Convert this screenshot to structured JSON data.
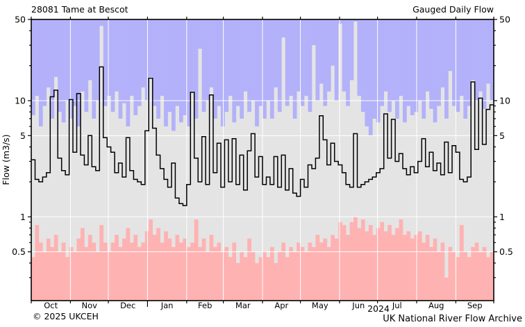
{
  "header": {
    "title": "28081 Tame at Bescot",
    "series_label": "Gauged Daily Flow"
  },
  "footer": {
    "copyright": "© 2025 UKCEH",
    "source": "UK National River Flow Archive"
  },
  "axes": {
    "y_label": "Flow (m3/s)",
    "y_scale": "log",
    "y_major_tick_values": [
      50,
      10,
      5,
      1,
      0.5
    ],
    "y_major_tick_labels": [
      "50",
      "10",
      "5",
      "1",
      "0.5"
    ],
    "y_minor_tick_values": [
      40,
      30,
      20,
      9,
      8,
      7,
      6,
      4,
      3,
      2,
      0.9,
      0.8,
      0.7,
      0.6,
      0.4,
      0.3
    ],
    "y_grid_values": [
      10,
      5,
      1,
      0.5
    ],
    "ylim": [
      0.19,
      50
    ],
    "x_month_labels": [
      "Oct",
      "Nov",
      "Dec",
      "Jan",
      "Feb",
      "Mar",
      "Apr",
      "May",
      "Jun",
      "Jul",
      "Aug",
      "Sep"
    ],
    "month_lengths_days": [
      31,
      30,
      31,
      31,
      29,
      31,
      30,
      31,
      30,
      31,
      31,
      30
    ],
    "year_boundary_day": 92,
    "year_label": "2024"
  },
  "colors": {
    "band_above_max": "#b3b1f9",
    "band_range": "#e4e4e4",
    "band_below_min": "#ffb2b2",
    "gridline": "#ffffff",
    "flow_line": "#000000",
    "frame": "#000000"
  },
  "chart_data": {
    "type": "line",
    "title": "28081 Tame at Bescot",
    "subtitle": "Gauged Daily Flow",
    "ylabel": "Flow (m3/s)",
    "yscale": "log",
    "ylim": [
      0.19,
      50
    ],
    "x_period": "Oct to Sep water year, year label 2024",
    "sample_interval_days": 3,
    "n_samples": 122,
    "series": [
      {
        "name": "gauged-daily-flow",
        "legend": "Gauged Daily Flow",
        "color": "#000000",
        "values": [
          3.1,
          2.1,
          2.0,
          2.2,
          2.4,
          10.8,
          12.3,
          3.2,
          2.5,
          2.3,
          10.2,
          3.6,
          11.5,
          3.4,
          2.8,
          5.0,
          2.7,
          2.5,
          19.5,
          4.8,
          4.0,
          3.6,
          2.4,
          2.9,
          2.2,
          4.8,
          2.5,
          2.1,
          2.0,
          1.9,
          5.5,
          15.6,
          5.8,
          3.4,
          2.6,
          2.1,
          1.8,
          2.9,
          1.45,
          1.3,
          1.25,
          1.9,
          11.8,
          3.2,
          2.0,
          4.9,
          1.9,
          11.2,
          2.4,
          4.3,
          1.8,
          4.6,
          2.0,
          4.7,
          1.9,
          3.4,
          1.7,
          3.7,
          5.2,
          2.2,
          3.3,
          1.9,
          2.2,
          1.9,
          3.3,
          1.8,
          3.4,
          1.7,
          2.6,
          1.6,
          1.5,
          2.1,
          1.8,
          2.8,
          2.6,
          3.2,
          7.4,
          4.6,
          2.8,
          4.3,
          3.0,
          2.8,
          2.4,
          1.9,
          1.8,
          5.2,
          1.8,
          1.9,
          2.0,
          2.1,
          2.2,
          2.4,
          2.6,
          7.7,
          3.2,
          6.9,
          3.0,
          3.5,
          2.6,
          2.3,
          2.7,
          2.4,
          3.0,
          4.7,
          2.7,
          3.6,
          2.5,
          2.9,
          2.3,
          4.4,
          2.4,
          4.1,
          3.6,
          2.1,
          2.0,
          2.2,
          14.5,
          3.8,
          10.5,
          4.2,
          8.4,
          9.2
        ]
      },
      {
        "name": "daily-max-envelope",
        "legend": "Period-of-record daily maximum (lower edge of lilac band)",
        "color": "#b3b1f9",
        "values": [
          7.5,
          11,
          6,
          9,
          13,
          7,
          16,
          8,
          6.5,
          10,
          7,
          9,
          6,
          12,
          8,
          15,
          7,
          10,
          44,
          9,
          11,
          8,
          12,
          7,
          9.5,
          6,
          11,
          7.5,
          9,
          13,
          10,
          16,
          9,
          7,
          11,
          6,
          8,
          5.5,
          9,
          6.5,
          7.5,
          6,
          12,
          7,
          28,
          8,
          10,
          13,
          7,
          9,
          6,
          8,
          11,
          6.5,
          9,
          7,
          12,
          8,
          10,
          6,
          9,
          7,
          10,
          7,
          13,
          8,
          35,
          9,
          11,
          7,
          12,
          9,
          11,
          8,
          30,
          10,
          14,
          9,
          12,
          20,
          10,
          46,
          12,
          9,
          15,
          48,
          11,
          8,
          6,
          5,
          7,
          6.5,
          9,
          12,
          8,
          10,
          7,
          11,
          6.5,
          9,
          7.5,
          8,
          10,
          7,
          12,
          8.5,
          6.5,
          9,
          13,
          7,
          18,
          9,
          8,
          11,
          7,
          9,
          15,
          10,
          12,
          8.5,
          14,
          10
        ]
      },
      {
        "name": "daily-min-envelope",
        "legend": "Period-of-record daily minimum (upper edge of pink band)",
        "color": "#ffb2b2",
        "values": [
          0.45,
          0.85,
          0.6,
          0.5,
          0.65,
          0.55,
          0.7,
          0.5,
          0.6,
          0.45,
          0.55,
          0.5,
          0.65,
          0.8,
          0.55,
          0.7,
          0.6,
          0.5,
          0.85,
          0.6,
          0.5,
          0.6,
          0.7,
          0.55,
          0.65,
          0.8,
          0.6,
          0.7,
          0.55,
          0.6,
          0.75,
          0.95,
          0.7,
          0.8,
          0.6,
          0.75,
          0.65,
          0.55,
          0.7,
          0.6,
          0.65,
          0.55,
          0.6,
          0.95,
          0.55,
          0.65,
          0.5,
          0.7,
          0.55,
          0.6,
          0.5,
          0.55,
          0.45,
          0.6,
          0.4,
          0.5,
          0.45,
          0.65,
          0.5,
          0.4,
          0.45,
          0.5,
          0.45,
          0.55,
          0.4,
          0.5,
          0.6,
          0.45,
          0.55,
          0.5,
          0.6,
          0.55,
          0.5,
          0.6,
          0.55,
          0.7,
          0.6,
          0.65,
          0.55,
          0.7,
          0.65,
          0.9,
          0.85,
          0.7,
          0.9,
          1.0,
          0.8,
          0.95,
          0.75,
          0.85,
          0.7,
          0.8,
          0.9,
          0.75,
          0.85,
          0.7,
          0.8,
          0.95,
          0.7,
          0.75,
          0.65,
          0.7,
          0.75,
          0.6,
          0.7,
          0.55,
          0.65,
          0.5,
          0.6,
          0.3,
          0.55,
          0.5,
          0.45,
          0.85,
          0.5,
          0.45,
          0.55,
          0.6,
          0.5,
          0.55,
          0.45,
          0.5
        ]
      }
    ]
  }
}
